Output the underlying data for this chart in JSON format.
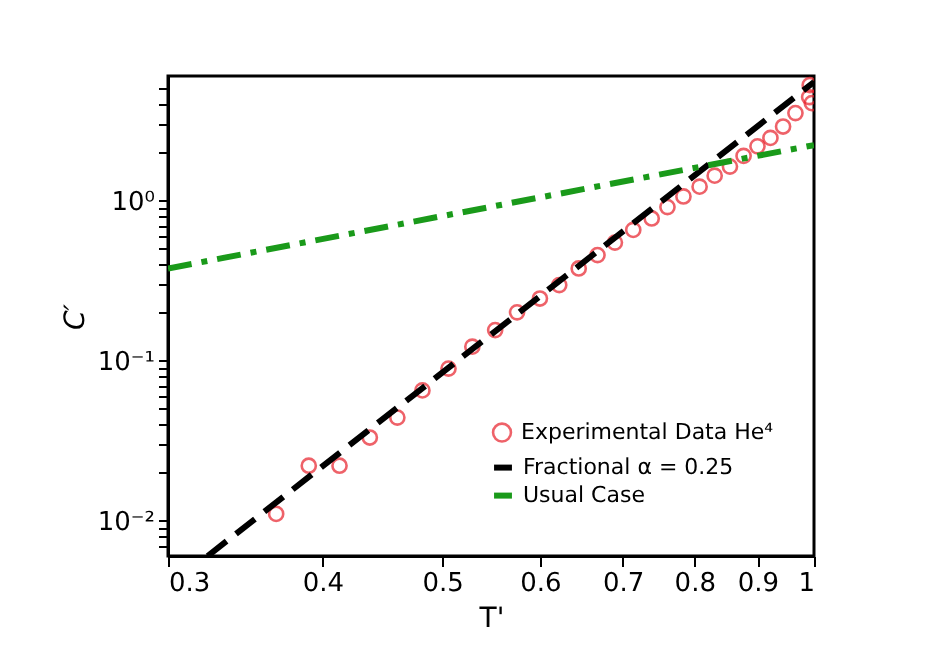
{
  "chart_data": {
    "type": "scatter",
    "xlabel": "T'",
    "ylabel": "C′",
    "log": "xy",
    "legend": "bottom right",
    "xlim": [
      0.3,
      1
    ],
    "xticks": [
      0.3,
      0.4,
      0.5,
      0.6,
      0.7,
      0.8,
      0.9,
      1
    ],
    "ylim": [
      0.006,
      6
    ],
    "yticks": [
      {
        "value": 0.007,
        "label": null
      },
      {
        "value": 0.008,
        "label": null
      },
      {
        "value": 0.009,
        "label": null
      },
      {
        "value": 0.01,
        "label": "10⁻²"
      },
      {
        "value": 0.02,
        "label": null
      },
      {
        "value": 0.03,
        "label": null
      },
      {
        "value": 0.04,
        "label": null
      },
      {
        "value": 0.05,
        "label": null
      },
      {
        "value": 0.06,
        "label": null
      },
      {
        "value": 0.07,
        "label": null
      },
      {
        "value": 0.08,
        "label": null
      },
      {
        "value": 0.09,
        "label": null
      },
      {
        "value": 0.1,
        "label": "10⁻¹"
      },
      {
        "value": 0.2,
        "label": null
      },
      {
        "value": 0.3,
        "label": null
      },
      {
        "value": 0.4,
        "label": null
      },
      {
        "value": 0.5,
        "label": null
      },
      {
        "value": 0.6,
        "label": null
      },
      {
        "value": 0.7,
        "label": null
      },
      {
        "value": 0.8,
        "label": null
      },
      {
        "value": 0.9,
        "label": null
      },
      {
        "value": 1,
        "label": "10⁰"
      },
      {
        "value": 2,
        "label": null
      },
      {
        "value": 3,
        "label": null
      },
      {
        "value": 4,
        "label": null
      },
      {
        "value": 5,
        "label": null
      }
    ],
    "series": [
      {
        "name": "Experimental Data He⁴",
        "type": "scatter",
        "marker": "circle",
        "color": "#e8202a",
        "x": [
          0.367,
          0.39,
          0.413,
          0.437,
          0.46,
          0.482,
          0.506,
          0.529,
          0.552,
          0.575,
          0.6,
          0.622,
          0.645,
          0.668,
          0.69,
          0.714,
          0.739,
          0.761,
          0.784,
          0.808,
          0.831,
          0.855,
          0.877,
          0.9,
          0.922,
          0.944,
          0.966,
          0.991,
          0.992,
          0.996
        ],
        "values": [
          0.011,
          0.022,
          0.022,
          0.033,
          0.044,
          0.065,
          0.089,
          0.122,
          0.155,
          0.2,
          0.244,
          0.296,
          0.376,
          0.456,
          0.546,
          0.655,
          0.772,
          0.91,
          1.06,
          1.22,
          1.43,
          1.63,
          1.9,
          2.18,
          2.46,
          2.9,
          3.52,
          4.43,
          5.26,
          4.06
        ]
      },
      {
        "name": "Fractional  α = 0.25",
        "type": "line",
        "line_style": "dashed",
        "color": "#000000",
        "x": [
          0.323,
          1
        ],
        "values": [
          0.006,
          5.5
        ]
      },
      {
        "name": "Usual Case",
        "type": "line",
        "line_style": "dashdot",
        "color": "#1a9a1a",
        "x": [
          0.3,
          1
        ],
        "values": [
          0.376,
          2.22
        ]
      }
    ]
  }
}
